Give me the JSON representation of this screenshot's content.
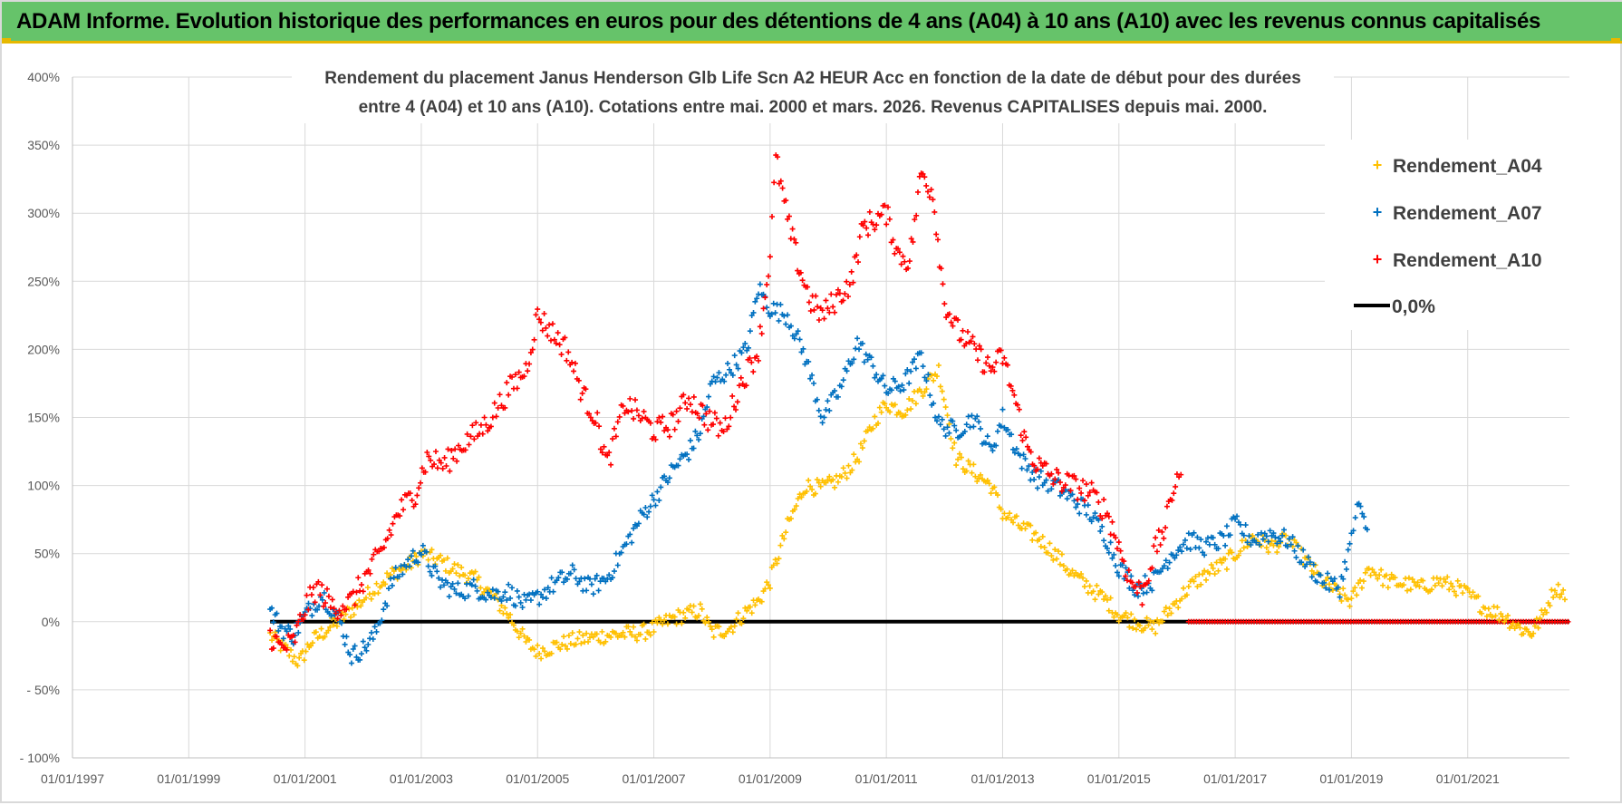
{
  "banner": {
    "title": "ADAM Informe. Evolution historique des performances en euros pour des détentions de 4 ans (A04) à 10 ans (A10) avec les revenus connus capitalisés"
  },
  "colors": {
    "banner_bg": "#66c36a",
    "banner_accent": "#e6b800",
    "a04": "#ffc000",
    "a07": "#0070c0",
    "a10": "#ff0000",
    "zero": "#000000",
    "grid": "#d9d9d9"
  },
  "chart_data": {
    "type": "scatter",
    "title_lines": [
      "Rendement du placement Janus Henderson Glb Life Scn A2 HEUR Acc en fonction de la date de début pour des durées",
      "entre 4 (A04) et 10 ans (A10). Cotations entre mai. 2000 et mars. 2026. Revenus CAPITALISES depuis mai. 2000."
    ],
    "xlabel": "",
    "ylabel": "",
    "x_range": [
      1997.0,
      2022.75
    ],
    "y_range": [
      -100,
      400
    ],
    "x_ticks": [
      "01/01/1997",
      "01/01/1999",
      "01/01/2001",
      "01/01/2003",
      "01/01/2005",
      "01/01/2007",
      "01/01/2009",
      "01/01/2011",
      "01/01/2013",
      "01/01/2015",
      "01/01/2017",
      "01/01/2019",
      "01/01/2021"
    ],
    "x_tick_years": [
      1997,
      1999,
      2001,
      2003,
      2005,
      2007,
      2009,
      2011,
      2013,
      2015,
      2017,
      2019,
      2021
    ],
    "y_ticks": [
      "- 100%",
      "- 50%",
      "0%",
      "50%",
      "100%",
      "150%",
      "200%",
      "250%",
      "300%",
      "350%",
      "400%"
    ],
    "y_tick_values": [
      -100,
      -50,
      0,
      50,
      100,
      150,
      200,
      250,
      300,
      350,
      400
    ],
    "grid": true,
    "legend_position": "top-right",
    "series": [
      {
        "name": "Rendement_A04",
        "marker": "+",
        "x": [
          2000.4,
          2000.7,
          2000.9,
          2001.1,
          2001.4,
          2001.7,
          2001.9,
          2002.2,
          2002.5,
          2002.8,
          2003.0,
          2003.3,
          2003.6,
          2003.9,
          2004.2,
          2004.5,
          2004.8,
          2005.0,
          2005.3,
          2005.6,
          2005.9,
          2006.2,
          2006.5,
          2006.8,
          2007.0,
          2007.3,
          2007.6,
          2007.8,
          2008.0,
          2008.3,
          2008.6,
          2008.8,
          2009.0,
          2009.3,
          2009.6,
          2009.9,
          2010.2,
          2010.5,
          2010.8,
          2011.0,
          2011.3,
          2011.6,
          2011.9,
          2012.2,
          2012.5,
          2012.8,
          2013.0,
          2013.3,
          2013.6,
          2013.9,
          2014.2,
          2014.5,
          2014.8,
          2015.0,
          2015.3,
          2015.6,
          2015.9,
          2016.2,
          2016.5,
          2016.8,
          2017.0,
          2017.3,
          2017.6,
          2017.9,
          2018.2,
          2018.5,
          2018.8,
          2019.0,
          2019.3,
          2019.6,
          2019.9,
          2020.2,
          2020.5,
          2020.8,
          2021.0,
          2021.3,
          2021.6,
          2021.9,
          2022.1,
          2022.3
        ],
        "y": [
          -10,
          -22,
          -30,
          -15,
          -5,
          5,
          12,
          25,
          35,
          42,
          50,
          45,
          38,
          32,
          20,
          5,
          -15,
          -22,
          -18,
          -14,
          -12,
          -10,
          -9,
          -8,
          -5,
          2,
          6,
          8,
          -8,
          -5,
          8,
          15,
          30,
          70,
          100,
          98,
          105,
          120,
          148,
          160,
          155,
          170,
          185,
          120,
          110,
          100,
          80,
          70,
          62,
          50,
          35,
          25,
          15,
          5,
          0,
          -5,
          10,
          25,
          35,
          42,
          50,
          62,
          55,
          60,
          45,
          30,
          20,
          15,
          40,
          30,
          28,
          25,
          30,
          25,
          20,
          10,
          5,
          -5,
          -8,
          5
        ],
        "x2": [
          2022.3,
          2022.5,
          2022.7
        ],
        "y2": [
          5,
          25,
          20
        ]
      },
      {
        "name": "Rendement_A07",
        "marker": "+",
        "x": [
          2000.4,
          2000.6,
          2000.8,
          2001.0,
          2001.3,
          2001.6,
          2001.8,
          2002.0,
          2002.2,
          2002.5,
          2002.8,
          2003.0,
          2003.3,
          2003.6,
          2003.9,
          2004.2,
          2004.5,
          2004.8,
          2005.0,
          2005.3,
          2005.6,
          2005.9,
          2006.2,
          2006.5,
          2006.8,
          2007.0,
          2007.3,
          2007.6,
          2007.8,
          2008.0,
          2008.3,
          2008.6,
          2008.8,
          2009.0,
          2009.3,
          2009.6,
          2009.9,
          2010.2,
          2010.5,
          2010.8,
          2011.0,
          2011.3,
          2011.6,
          2011.9,
          2012.2,
          2012.5,
          2012.8,
          2013.0,
          2013.3,
          2013.6,
          2013.9,
          2014.2,
          2014.5,
          2014.8,
          2015.0,
          2015.3,
          2015.6,
          2015.9,
          2016.2,
          2016.5,
          2016.8,
          2017.0,
          2017.3,
          2017.6,
          2017.9,
          2018.2,
          2018.5,
          2018.8,
          2019.0,
          2019.1,
          2019.3
        ],
        "y": [
          8,
          -5,
          -10,
          5,
          20,
          0,
          -25,
          -20,
          -10,
          30,
          45,
          52,
          30,
          22,
          25,
          20,
          22,
          12,
          18,
          28,
          35,
          25,
          32,
          55,
          78,
          90,
          110,
          125,
          140,
          175,
          185,
          200,
          245,
          230,
          225,
          195,
          150,
          170,
          205,
          185,
          170,
          175,
          195,
          145,
          140,
          150,
          125,
          150,
          120,
          105,
          100,
          90,
          80,
          60,
          40,
          25,
          30,
          50,
          60,
          55,
          60,
          72,
          60,
          65,
          60,
          45,
          30,
          25,
          60,
          85,
          65
        ]
      },
      {
        "name": "Rendement_A10",
        "marker": "+",
        "x": [
          2000.4,
          2000.6,
          2000.8,
          2001.0,
          2001.2,
          2001.5,
          2001.8,
          2002.0,
          2002.3,
          2002.6,
          2002.9,
          2003.1,
          2003.4,
          2003.7,
          2004.0,
          2004.2,
          2004.5,
          2004.8,
          2005.0,
          2005.2,
          2005.5,
          2005.8,
          2006.0,
          2006.2,
          2006.5,
          2006.8,
          2007.0,
          2007.3,
          2007.6,
          2007.9,
          2008.2,
          2008.5,
          2008.8,
          2009.0,
          2009.1,
          2009.3,
          2009.5,
          2009.7,
          2009.9,
          2010.2,
          2010.4,
          2010.6,
          2010.8,
          2011.0,
          2011.2,
          2011.4,
          2011.6,
          2011.8,
          2012.0,
          2012.2,
          2012.4,
          2012.6,
          2012.8,
          2013.0,
          2013.2,
          2013.4,
          2013.6,
          2013.9,
          2014.2,
          2014.5,
          2014.8,
          2015.0,
          2015.2,
          2015.4,
          2015.6,
          2015.8,
          2016.0,
          2016.1
        ],
        "y": [
          -10,
          -20,
          -15,
          10,
          25,
          10,
          15,
          30,
          50,
          80,
          95,
          120,
          115,
          130,
          140,
          150,
          170,
          185,
          225,
          215,
          200,
          165,
          150,
          115,
          160,
          150,
          140,
          145,
          165,
          150,
          140,
          175,
          200,
          270,
          340,
          295,
          260,
          235,
          225,
          240,
          250,
          290,
          295,
          300,
          270,
          265,
          330,
          315,
          235,
          215,
          205,
          195,
          185,
          195,
          165,
          130,
          115,
          105,
          100,
          95,
          80,
          55,
          30,
          20,
          50,
          70,
          110,
          95
        ]
      },
      {
        "name": "0,0%",
        "type": "line",
        "x": [
          2000.4,
          2022.75
        ],
        "y": [
          0,
          0
        ]
      }
    ],
    "a10_zero_band": {
      "x_start": 2016.2,
      "x_end": 2022.75,
      "y": 0
    }
  }
}
